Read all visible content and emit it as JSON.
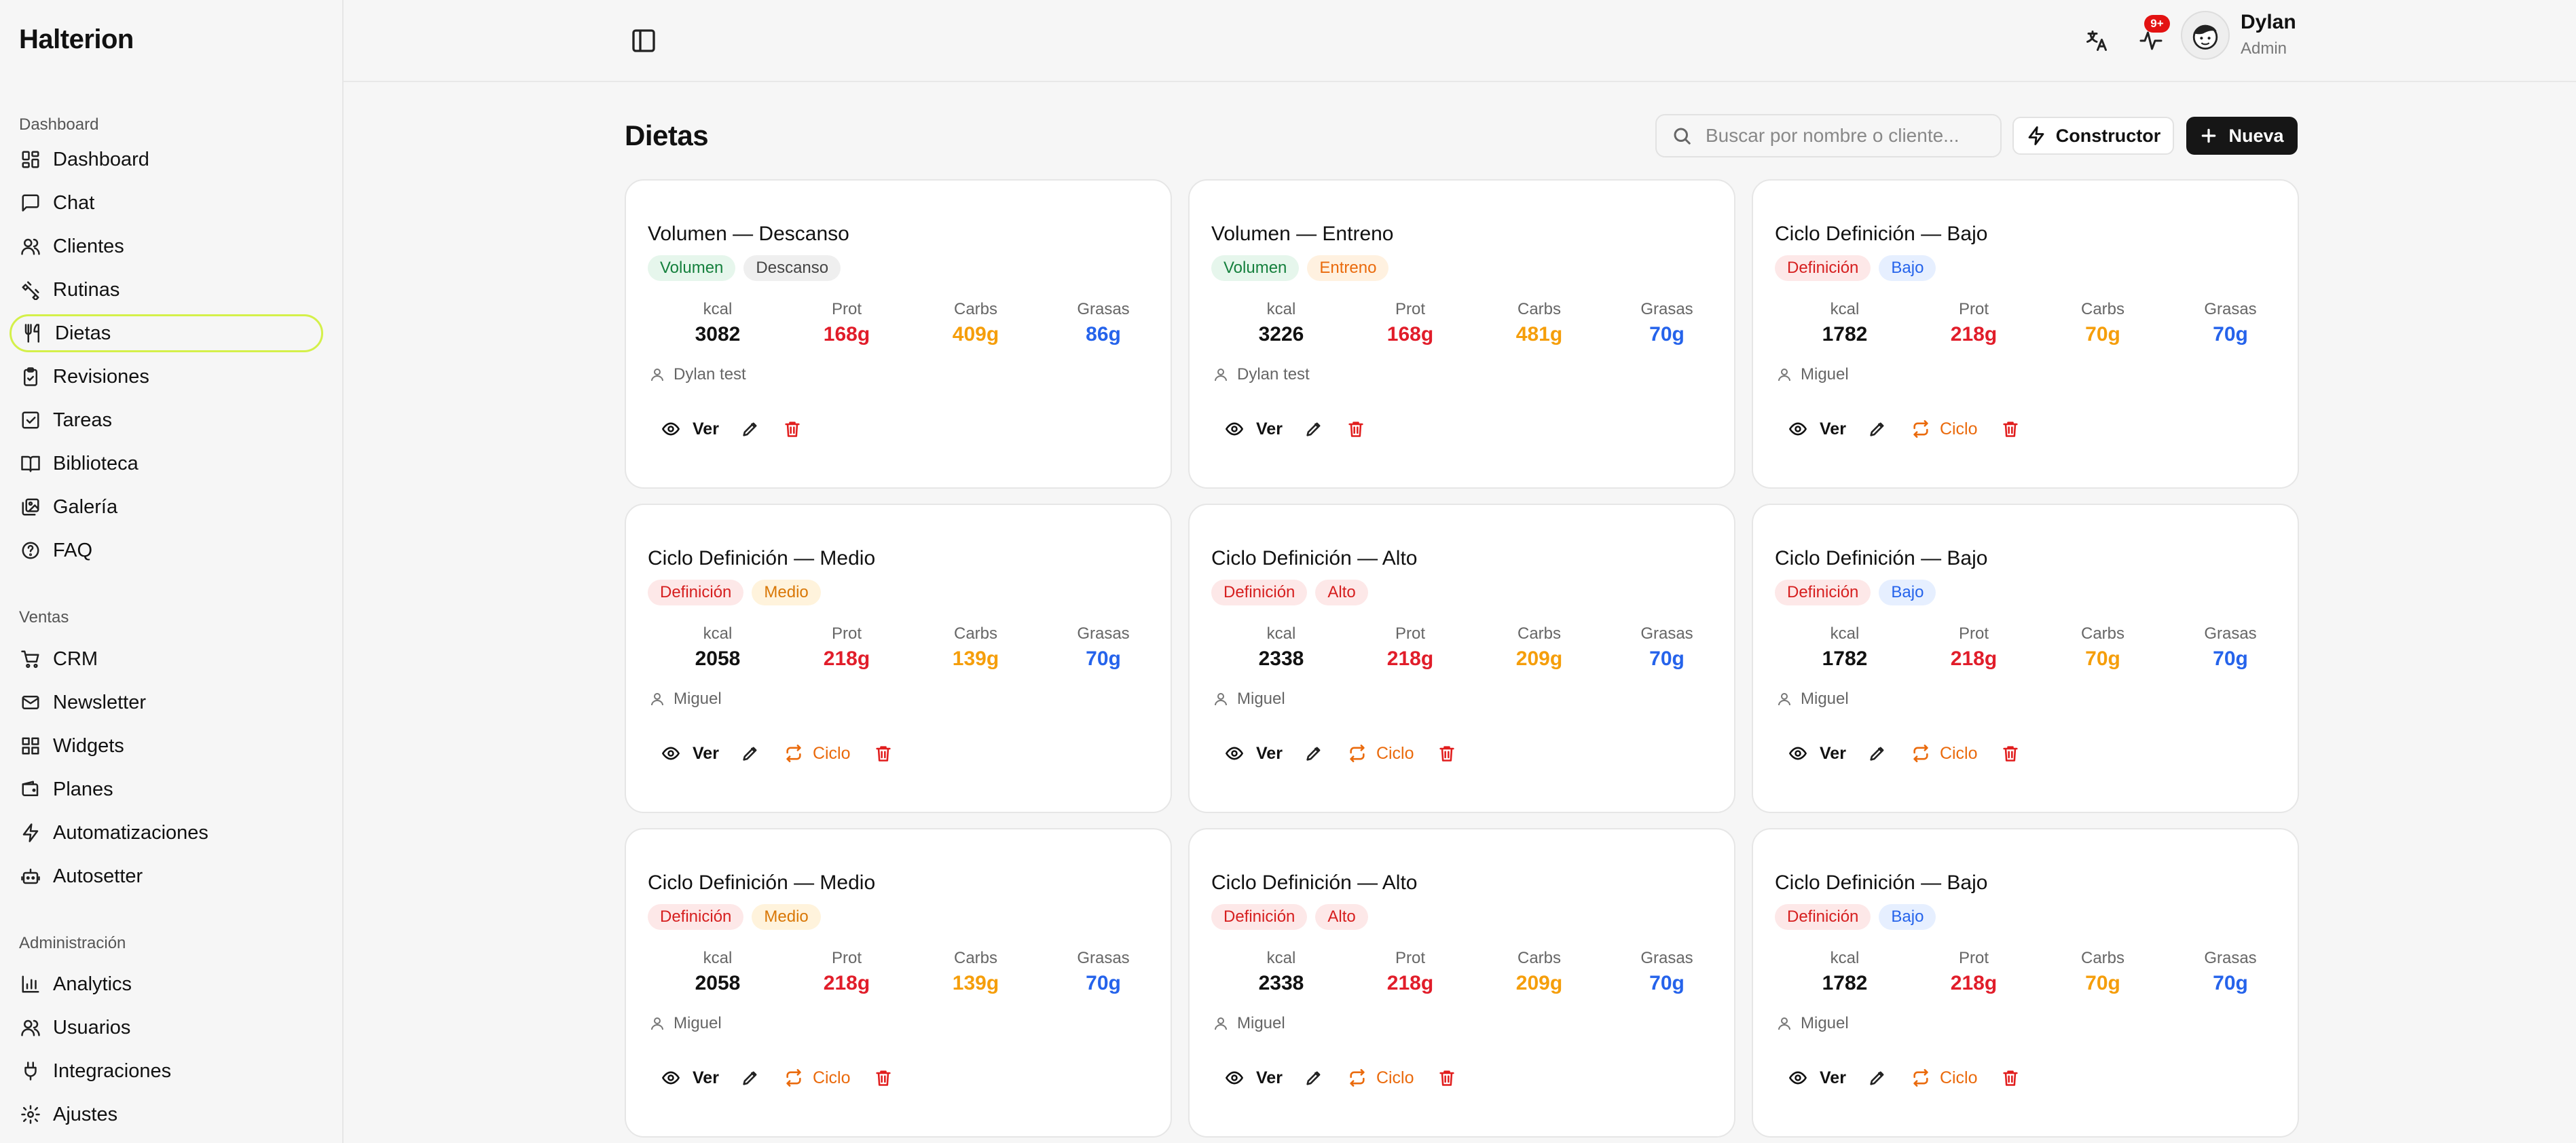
{
  "app": {
    "brand": "Halterion"
  },
  "sidebar": {
    "sections": [
      {
        "label": "Dashboard",
        "items": [
          {
            "label": "Dashboard",
            "icon": "dashboard-icon"
          },
          {
            "label": "Chat",
            "icon": "chat-icon"
          },
          {
            "label": "Clientes",
            "icon": "users-icon"
          },
          {
            "label": "Rutinas",
            "icon": "dumbbell-icon"
          },
          {
            "label": "Dietas",
            "icon": "utensils-icon",
            "active": true
          },
          {
            "label": "Revisiones",
            "icon": "clipboard-check-icon"
          },
          {
            "label": "Tareas",
            "icon": "checkbox-icon"
          },
          {
            "label": "Biblioteca",
            "icon": "book-icon"
          },
          {
            "label": "Galería",
            "icon": "images-icon"
          },
          {
            "label": "FAQ",
            "icon": "help-circle-icon"
          }
        ]
      },
      {
        "label": "Ventas",
        "items": [
          {
            "label": "CRM",
            "icon": "cart-icon"
          },
          {
            "label": "Newsletter",
            "icon": "mail-icon"
          },
          {
            "label": "Widgets",
            "icon": "widgets-icon"
          },
          {
            "label": "Planes",
            "icon": "wallet-icon"
          },
          {
            "label": "Automatizaciones",
            "icon": "bolt-icon"
          },
          {
            "label": "Autosetter",
            "icon": "bot-icon"
          }
        ]
      },
      {
        "label": "Administración",
        "items": [
          {
            "label": "Analytics",
            "icon": "bar-chart-icon"
          },
          {
            "label": "Usuarios",
            "icon": "users-icon"
          },
          {
            "label": "Integraciones",
            "icon": "plug-icon"
          },
          {
            "label": "Ajustes",
            "icon": "gear-icon"
          }
        ]
      }
    ]
  },
  "header": {
    "notification_count": "9+",
    "user": {
      "name": "Dylan",
      "role": "Admin"
    }
  },
  "main": {
    "title": "Dietas",
    "search": {
      "placeholder": "Buscar por nombre o cliente...",
      "value": ""
    },
    "constructor_label": "Constructor",
    "new_label": "Nueva",
    "macro_labels": {
      "kcal": "kcal",
      "prot": "Prot",
      "carbs": "Carbs",
      "fat": "Grasas"
    },
    "action_labels": {
      "view": "Ver",
      "cycle": "Ciclo"
    },
    "cards": [
      {
        "title": "Volumen — Descanso",
        "tags": [
          {
            "text": "Volumen",
            "type": "volumen"
          },
          {
            "text": "Descanso",
            "type": "descanso"
          }
        ],
        "kcal": "3082",
        "prot": "168g",
        "carbs": "409g",
        "fat": "86g",
        "client": "Dylan test",
        "cycle": false
      },
      {
        "title": "Volumen — Entreno",
        "tags": [
          {
            "text": "Volumen",
            "type": "volumen"
          },
          {
            "text": "Entreno",
            "type": "entreno"
          }
        ],
        "kcal": "3226",
        "prot": "168g",
        "carbs": "481g",
        "fat": "70g",
        "client": "Dylan test",
        "cycle": false
      },
      {
        "title": "Ciclo Definición — Bajo",
        "tags": [
          {
            "text": "Definición",
            "type": "definicion"
          },
          {
            "text": "Bajo",
            "type": "bajo"
          }
        ],
        "kcal": "1782",
        "prot": "218g",
        "carbs": "70g",
        "fat": "70g",
        "client": "Miguel",
        "cycle": true
      },
      {
        "title": "Ciclo Definición — Medio",
        "tags": [
          {
            "text": "Definición",
            "type": "definicion"
          },
          {
            "text": "Medio",
            "type": "medio"
          }
        ],
        "kcal": "2058",
        "prot": "218g",
        "carbs": "139g",
        "fat": "70g",
        "client": "Miguel",
        "cycle": true
      },
      {
        "title": "Ciclo Definición — Alto",
        "tags": [
          {
            "text": "Definición",
            "type": "definicion"
          },
          {
            "text": "Alto",
            "type": "alto"
          }
        ],
        "kcal": "2338",
        "prot": "218g",
        "carbs": "209g",
        "fat": "70g",
        "client": "Miguel",
        "cycle": true
      },
      {
        "title": "Ciclo Definición — Bajo",
        "tags": [
          {
            "text": "Definición",
            "type": "definicion"
          },
          {
            "text": "Bajo",
            "type": "bajo"
          }
        ],
        "kcal": "1782",
        "prot": "218g",
        "carbs": "70g",
        "fat": "70g",
        "client": "Miguel",
        "cycle": true
      },
      {
        "title": "Ciclo Definición — Medio",
        "tags": [
          {
            "text": "Definición",
            "type": "definicion"
          },
          {
            "text": "Medio",
            "type": "medio"
          }
        ],
        "kcal": "2058",
        "prot": "218g",
        "carbs": "139g",
        "fat": "70g",
        "client": "Miguel",
        "cycle": true
      },
      {
        "title": "Ciclo Definición — Alto",
        "tags": [
          {
            "text": "Definición",
            "type": "definicion"
          },
          {
            "text": "Alto",
            "type": "alto"
          }
        ],
        "kcal": "2338",
        "prot": "218g",
        "carbs": "209g",
        "fat": "70g",
        "client": "Miguel",
        "cycle": true
      },
      {
        "title": "Ciclo Definición — Bajo",
        "tags": [
          {
            "text": "Definición",
            "type": "definicion"
          },
          {
            "text": "Bajo",
            "type": "bajo"
          }
        ],
        "kcal": "1782",
        "prot": "218g",
        "carbs": "70g",
        "fat": "70g",
        "client": "Miguel",
        "cycle": true
      }
    ]
  },
  "colors": {
    "prot": "#e11d2a",
    "carbs": "#f59e0b",
    "fat": "#2563eb",
    "accent_active": "#d4f04a",
    "tag_volumen": {
      "bg": "#e6f6ec",
      "fg": "#15803d"
    },
    "tag_descanso": {
      "bg": "#efefef",
      "fg": "#444444"
    },
    "tag_entreno": {
      "bg": "#fff1e0",
      "fg": "#ea6a0c"
    },
    "tag_definicion": {
      "bg": "#fde8e8",
      "fg": "#d61f1f"
    },
    "tag_bajo": {
      "bg": "#e6efff",
      "fg": "#2563eb"
    },
    "tag_medio": {
      "bg": "#fff3dc",
      "fg": "#d97706"
    },
    "tag_alto": {
      "bg": "#fde8e8",
      "fg": "#d61f1f"
    }
  }
}
